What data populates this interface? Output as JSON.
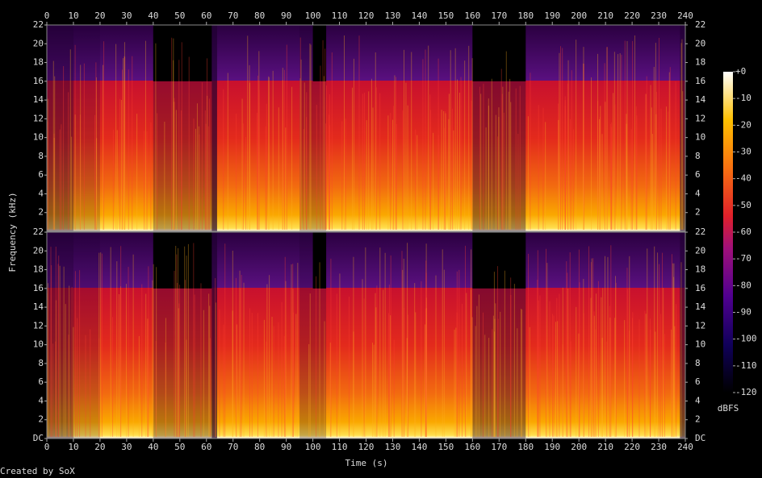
{
  "chart_data": {
    "type": "spectrogram",
    "xlabel": "Time (s)",
    "ylabel": "Frequency (kHz)",
    "xlim": [
      0,
      240
    ],
    "xticks": [
      0,
      10,
      20,
      30,
      40,
      50,
      60,
      70,
      80,
      90,
      100,
      110,
      120,
      130,
      140,
      150,
      160,
      170,
      180,
      190,
      200,
      210,
      220,
      230,
      240
    ],
    "ylim": [
      0,
      22
    ],
    "panels": [
      {
        "yticks": [
          2,
          4,
          6,
          8,
          10,
          12,
          14,
          16,
          18,
          20,
          22
        ]
      },
      {
        "yticks": [
          {
            "value": 0,
            "label": "DC"
          },
          2,
          4,
          6,
          8,
          10,
          12,
          14,
          16,
          18,
          20,
          22
        ]
      }
    ],
    "colorbar": {
      "label": "dBFS",
      "lim": [
        -120,
        0
      ],
      "ticks": [
        {
          "value": 0,
          "label": "+0"
        },
        -10,
        -20,
        -30,
        -40,
        -50,
        -60,
        -70,
        -80,
        -90,
        -100,
        -110,
        -120
      ]
    }
  },
  "credit": "Created by SoX"
}
